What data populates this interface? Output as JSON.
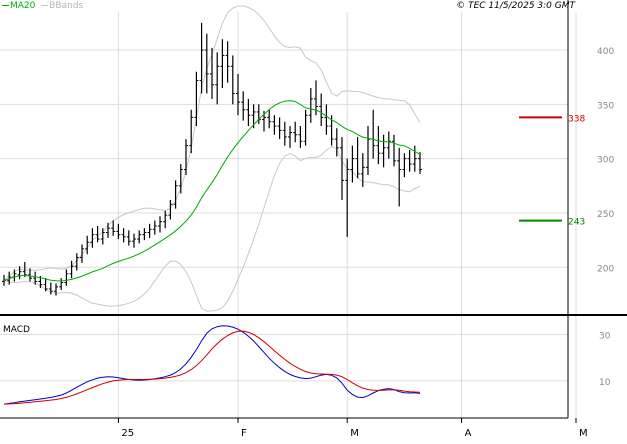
{
  "header": {
    "legend_ma": "MA20",
    "legend_bb": "BBands",
    "copyright": "© TEC 11/5/2025 3:0 GMT"
  },
  "colors": {
    "ma": "#00aa00",
    "bands": "#c8c8c8",
    "candle": "#000000",
    "resistance": "#cc0000",
    "support": "#008800",
    "macd": "#0000cc",
    "signal": "#cc0000",
    "grid": "#dddddd"
  },
  "chart_data": [
    {
      "type": "candlestick",
      "title": "",
      "y_ticks": [
        "200",
        "250",
        "300",
        "350",
        "400"
      ],
      "ylim": [
        157,
        435
      ],
      "x_ticks": [
        {
          "label": "25",
          "index": 22
        },
        {
          "label": "F",
          "index": 45
        },
        {
          "label": "M",
          "index": 66
        },
        {
          "label": "A",
          "index": 88
        },
        {
          "label": "M",
          "index": 110
        }
      ],
      "levels": [
        {
          "name": "resistance",
          "label": "338",
          "value": 338
        },
        {
          "name": "support",
          "label": "243",
          "value": 243
        }
      ],
      "grid": true,
      "candles": [
        [
          187,
          193,
          183,
          188
        ],
        [
          188,
          196,
          184,
          191
        ],
        [
          191,
          198,
          187,
          194
        ],
        [
          193,
          201,
          189,
          196
        ],
        [
          196,
          205,
          191,
          193
        ],
        [
          193,
          199,
          187,
          190
        ],
        [
          190,
          196,
          184,
          187
        ],
        [
          187,
          192,
          181,
          184
        ],
        [
          184,
          190,
          178,
          180
        ],
        [
          180,
          186,
          175,
          178
        ],
        [
          178,
          185,
          174,
          182
        ],
        [
          182,
          190,
          179,
          186
        ],
        [
          186,
          198,
          183,
          194
        ],
        [
          194,
          206,
          190,
          201
        ],
        [
          201,
          213,
          197,
          209
        ],
        [
          209,
          221,
          204,
          217
        ],
        [
          217,
          229,
          212,
          223
        ],
        [
          223,
          236,
          218,
          230
        ],
        [
          230,
          238,
          223,
          226
        ],
        [
          226,
          236,
          221,
          232
        ],
        [
          232,
          241,
          227,
          236
        ],
        [
          236,
          243,
          229,
          233
        ],
        [
          233,
          240,
          226,
          230
        ],
        [
          230,
          236,
          223,
          228
        ],
        [
          228,
          234,
          220,
          224
        ],
        [
          224,
          231,
          218,
          226
        ],
        [
          226,
          234,
          222,
          230
        ],
        [
          230,
          236,
          225,
          232
        ],
        [
          232,
          240,
          227,
          235
        ],
        [
          235,
          243,
          230,
          238
        ],
        [
          238,
          247,
          232,
          242
        ],
        [
          242,
          252,
          236,
          248
        ],
        [
          248,
          262,
          244,
          258
        ],
        [
          258,
          280,
          254,
          275
        ],
        [
          275,
          295,
          268,
          290
        ],
        [
          290,
          318,
          285,
          312
        ],
        [
          312,
          345,
          305,
          338
        ],
        [
          338,
          380,
          330,
          372
        ],
        [
          372,
          425,
          360,
          400
        ],
        [
          400,
          415,
          360,
          378
        ],
        [
          378,
          402,
          355,
          368
        ],
        [
          368,
          398,
          350,
          385
        ],
        [
          385,
          410,
          365,
          395
        ],
        [
          395,
          408,
          370,
          385
        ],
        [
          385,
          395,
          350,
          360
        ],
        [
          360,
          378,
          340,
          352
        ],
        [
          352,
          362,
          335,
          345
        ],
        [
          345,
          355,
          330,
          340
        ],
        [
          340,
          350,
          328,
          343
        ],
        [
          343,
          350,
          332,
          336
        ],
        [
          336,
          344,
          325,
          338
        ],
        [
          338,
          345,
          328,
          334
        ],
        [
          334,
          340,
          322,
          330
        ],
        [
          330,
          338,
          318,
          326
        ],
        [
          326,
          334,
          312,
          320
        ],
        [
          320,
          330,
          310,
          324
        ],
        [
          324,
          334,
          315,
          322
        ],
        [
          322,
          330,
          310,
          316
        ],
        [
          316,
          345,
          312,
          340
        ],
        [
          340,
          365,
          333,
          355
        ],
        [
          355,
          372,
          340,
          348
        ],
        [
          348,
          360,
          330,
          338
        ],
        [
          338,
          350,
          322,
          330
        ],
        [
          330,
          340,
          312,
          318
        ],
        [
          318,
          328,
          302,
          310
        ],
        [
          310,
          320,
          262,
          280
        ],
        [
          280,
          300,
          228,
          290
        ],
        [
          290,
          312,
          278,
          300
        ],
        [
          300,
          320,
          282,
          286
        ],
        [
          286,
          305,
          274,
          292
        ],
        [
          292,
          330,
          285,
          318
        ],
        [
          318,
          345,
          300,
          312
        ],
        [
          312,
          330,
          295,
          305
        ],
        [
          305,
          322,
          292,
          310
        ],
        [
          310,
          325,
          300,
          316
        ],
        [
          316,
          322,
          293,
          298
        ],
        [
          298,
          310,
          256,
          290
        ],
        [
          290,
          305,
          283,
          300
        ],
        [
          300,
          308,
          288,
          295
        ],
        [
          295,
          312,
          288,
          300
        ],
        [
          300,
          306,
          286,
          290
        ]
      ]
    },
    {
      "type": "line",
      "title": "MACD",
      "y_ticks": [
        "10",
        "30"
      ],
      "ylim": [
        -6,
        38
      ],
      "grid": true,
      "series": [
        {
          "name": "macd",
          "values": [
            0,
            0.3,
            0.6,
            1.0,
            1.3,
            1.6,
            1.9,
            2.2,
            2.5,
            2.9,
            3.3,
            3.9,
            4.8,
            6.0,
            7.3,
            8.5,
            9.6,
            10.5,
            11.2,
            11.6,
            11.8,
            11.7,
            11.4,
            11.0,
            10.6,
            10.4,
            10.3,
            10.4,
            10.6,
            10.9,
            11.3,
            11.8,
            12.5,
            13.6,
            15.2,
            17.4,
            20.2,
            23.5,
            27.3,
            30.6,
            32.5,
            33.4,
            33.8,
            33.7,
            33.2,
            32.3,
            31.0,
            29.3,
            27.2,
            24.8,
            22.3,
            19.8,
            17.6,
            15.7,
            14.1,
            12.8,
            11.9,
            11.3,
            11.0,
            11.2,
            11.8,
            12.5,
            12.8,
            12.4,
            11.3,
            9.0,
            6.0,
            4.2,
            3.0,
            2.8,
            3.6,
            4.8,
            5.8,
            6.4,
            6.7,
            6.3,
            5.4,
            4.9,
            4.8,
            4.9,
            4.6
          ]
        },
        {
          "name": "signal",
          "values": [
            0,
            0.1,
            0.2,
            0.4,
            0.6,
            0.8,
            1.0,
            1.2,
            1.4,
            1.7,
            2.0,
            2.4,
            2.9,
            3.6,
            4.4,
            5.3,
            6.2,
            7.1,
            8.0,
            8.8,
            9.5,
            10.0,
            10.3,
            10.5,
            10.6,
            10.6,
            10.6,
            10.6,
            10.7,
            10.8,
            11.0,
            11.2,
            11.5,
            12.0,
            12.6,
            13.6,
            14.9,
            16.6,
            18.7,
            21.2,
            23.8,
            26.1,
            28.0,
            29.6,
            30.7,
            31.4,
            31.5,
            31.0,
            30.0,
            28.6,
            26.9,
            25.0,
            23.0,
            21.1,
            19.3,
            17.6,
            16.2,
            15.0,
            14.0,
            13.4,
            13.1,
            13.0,
            12.9,
            12.8,
            12.5,
            11.8,
            10.6,
            9.2,
            7.9,
            6.9,
            6.3,
            6.0,
            5.9,
            6.0,
            6.1,
            6.2,
            6.0,
            5.6,
            5.3,
            5.2,
            5.1
          ]
        }
      ]
    }
  ]
}
